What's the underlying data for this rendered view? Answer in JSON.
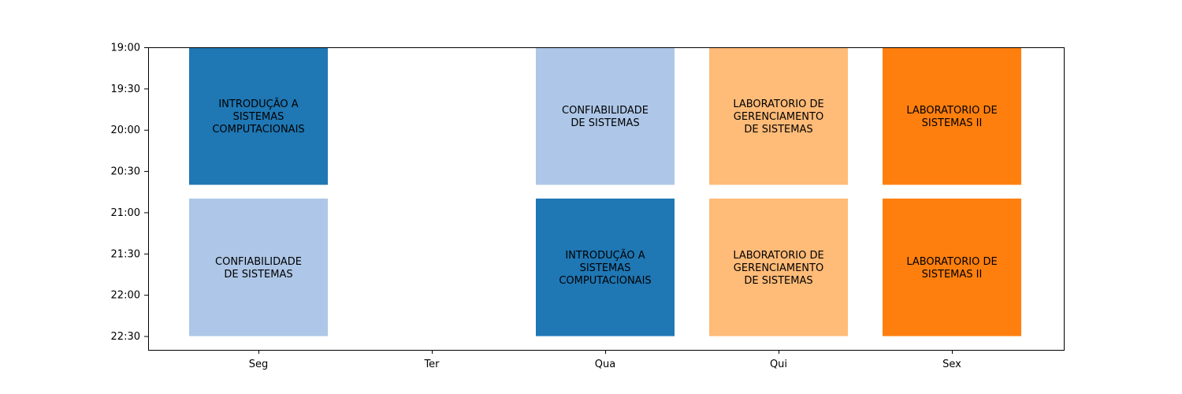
{
  "chart_data": {
    "type": "bar",
    "categories": [
      "Seg",
      "Ter",
      "Qua",
      "Qui",
      "Sex"
    ],
    "y_ticks": [
      "19:00",
      "19:30",
      "20:00",
      "20:30",
      "21:00",
      "21:30",
      "22:00",
      "22:30"
    ],
    "y_axis_inverted": true,
    "ylim": [
      "19:00",
      "22:40"
    ],
    "grid": false,
    "blocks": [
      {
        "day": "Seg",
        "start": "19:00",
        "end": "20:40",
        "label": [
          "INTRODUÇÃO A",
          "SISTEMAS",
          "COMPUTACIONAIS"
        ],
        "color": "#1f77b4"
      },
      {
        "day": "Seg",
        "start": "20:50",
        "end": "22:30",
        "label": [
          "CONFIABILIDADE",
          "DE SISTEMAS"
        ],
        "color": "#aec7e8"
      },
      {
        "day": "Qua",
        "start": "19:00",
        "end": "20:40",
        "label": [
          "CONFIABILIDADE",
          "DE SISTEMAS"
        ],
        "color": "#aec7e8"
      },
      {
        "day": "Qua",
        "start": "20:50",
        "end": "22:30",
        "label": [
          "INTRODUÇÃO A",
          "SISTEMAS",
          "COMPUTACIONAIS"
        ],
        "color": "#1f77b4"
      },
      {
        "day": "Qui",
        "start": "19:00",
        "end": "20:40",
        "label": [
          "LABORATORIO DE",
          "GERENCIAMENTO",
          "DE SISTEMAS"
        ],
        "color": "#ffbb78"
      },
      {
        "day": "Qui",
        "start": "20:50",
        "end": "22:30",
        "label": [
          "LABORATORIO DE",
          "GERENCIAMENTO",
          "DE SISTEMAS"
        ],
        "color": "#ffbb78"
      },
      {
        "day": "Sex",
        "start": "19:00",
        "end": "20:40",
        "label": [
          "LABORATORIO DE",
          "SISTEMAS II"
        ],
        "color": "#ff7f0e"
      },
      {
        "day": "Sex",
        "start": "20:50",
        "end": "22:30",
        "label": [
          "LABORATORIO DE",
          "SISTEMAS II"
        ],
        "color": "#ff7f0e"
      }
    ]
  }
}
